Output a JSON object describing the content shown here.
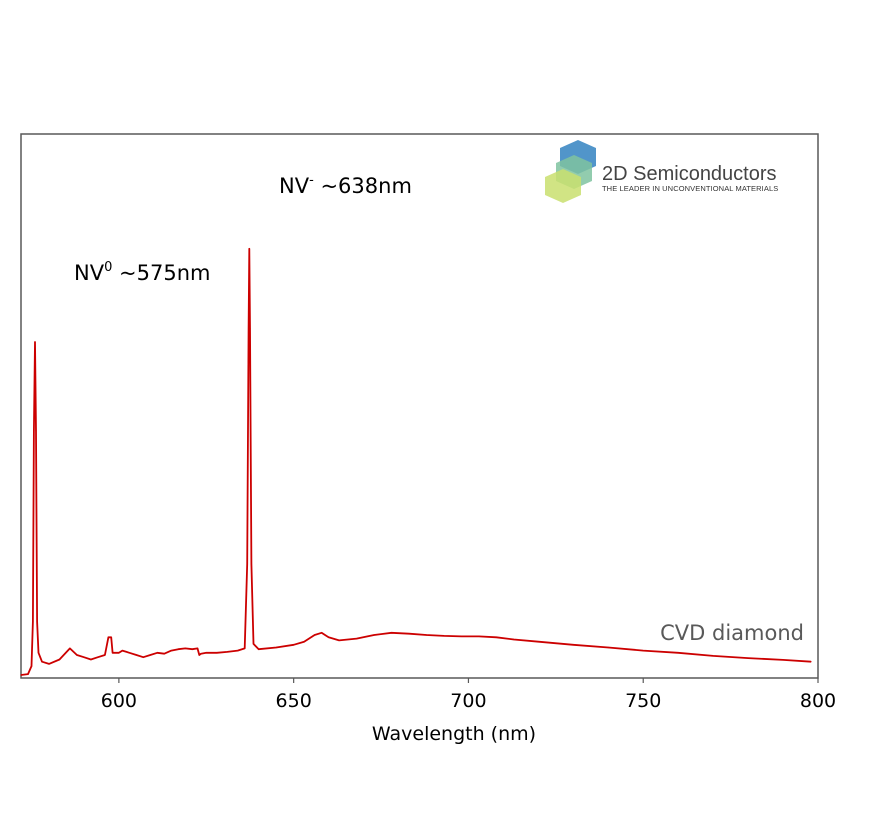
{
  "chart_data": {
    "type": "line",
    "title": "",
    "xlabel": "Wavelength (nm)",
    "ylabel": "",
    "xlim": [
      572,
      800
    ],
    "ylim": [
      0,
      1
    ],
    "x_ticks": [
      600,
      650,
      700,
      750,
      800
    ],
    "grid": false,
    "series": [
      {
        "name": "CVD diamond",
        "color": "#cc0000",
        "x": [
          572,
          574,
          575,
          575.4,
          575.7,
          576,
          576.3,
          576.6,
          577,
          578,
          580,
          583,
          586,
          588,
          590,
          592,
          594,
          596,
          597,
          597.4,
          597.8,
          598.2,
          598.6,
          600,
          601,
          603,
          605,
          607,
          609,
          611,
          613,
          615,
          617,
          619,
          621,
          622.5,
          623,
          623.5,
          625,
          628,
          631,
          634,
          636,
          636.7,
          637.1,
          637.3,
          637.5,
          637.9,
          638.5,
          640,
          645,
          650,
          653,
          656,
          658,
          660,
          663,
          668,
          673,
          678,
          683,
          688,
          693,
          698,
          703,
          708,
          713,
          720,
          730,
          740,
          750,
          760,
          770,
          780,
          790,
          798
        ],
        "y": [
          0,
          0.002,
          0.02,
          0.12,
          0.55,
          0.75,
          0.55,
          0.12,
          0.05,
          0.03,
          0.025,
          0.035,
          0.06,
          0.045,
          0.04,
          0.035,
          0.04,
          0.045,
          0.085,
          0.085,
          0.085,
          0.05,
          0.05,
          0.05,
          0.055,
          0.05,
          0.045,
          0.04,
          0.045,
          0.05,
          0.048,
          0.055,
          0.058,
          0.06,
          0.058,
          0.06,
          0.045,
          0.048,
          0.05,
          0.05,
          0.052,
          0.055,
          0.06,
          0.25,
          0.78,
          0.96,
          0.78,
          0.25,
          0.07,
          0.058,
          0.062,
          0.068,
          0.075,
          0.09,
          0.095,
          0.085,
          0.078,
          0.082,
          0.09,
          0.095,
          0.093,
          0.09,
          0.088,
          0.087,
          0.087,
          0.085,
          0.08,
          0.075,
          0.068,
          0.062,
          0.055,
          0.05,
          0.043,
          0.038,
          0.034,
          0.03
        ]
      }
    ],
    "annotations": [
      {
        "base": "NV",
        "sup": "0",
        "rest": " ~575nm",
        "x": 575
      },
      {
        "base": "NV",
        "sup": "-",
        "rest": " ~638nm",
        "x": 638
      }
    ]
  },
  "series_label": "CVD diamond",
  "logo": {
    "title": "2D Semiconductors",
    "tagline": "THE LEADER IN UNCONVENTIONAL MATERIALS",
    "colors": [
      "#3e8ac4",
      "#7fc3a0",
      "#c9df6f"
    ]
  }
}
